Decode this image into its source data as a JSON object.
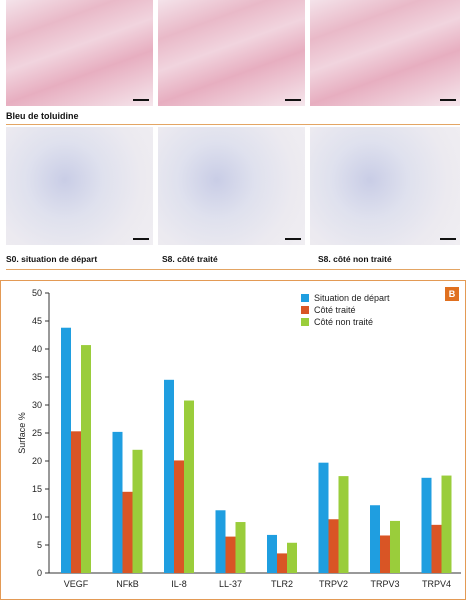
{
  "panel_a": {
    "row_label": "Bleu de toluidine",
    "col_labels": [
      "S0. situation de départ",
      "S8. côté traité",
      "S8. côté non traité"
    ]
  },
  "panel_b": {
    "badge": "B"
  },
  "chart_data": {
    "type": "bar",
    "categories": [
      "VEGF",
      "NFkB",
      "IL-8",
      "LL-37",
      "TLR2",
      "TRPV2",
      "TRPV3",
      "TRPV4"
    ],
    "series": [
      {
        "name": "Situation de départ",
        "color": "#1f9ee0",
        "values": [
          43.8,
          25.2,
          34.5,
          11.2,
          6.8,
          19.7,
          12.1,
          17.0
        ]
      },
      {
        "name": "Côté traité",
        "color": "#d95525",
        "values": [
          25.3,
          14.5,
          20.1,
          6.5,
          3.5,
          9.6,
          6.7,
          8.6
        ]
      },
      {
        "name": "Côté non traité",
        "color": "#9acd3b",
        "values": [
          40.7,
          22.0,
          30.8,
          9.1,
          5.4,
          17.3,
          9.3,
          17.4
        ]
      }
    ],
    "ylabel": "Surface %",
    "ylim": [
      0,
      50
    ],
    "yticks": [
      0,
      5,
      10,
      15,
      20,
      25,
      30,
      35,
      40,
      45,
      50
    ],
    "legend_position": "top-right",
    "grid": false
  }
}
